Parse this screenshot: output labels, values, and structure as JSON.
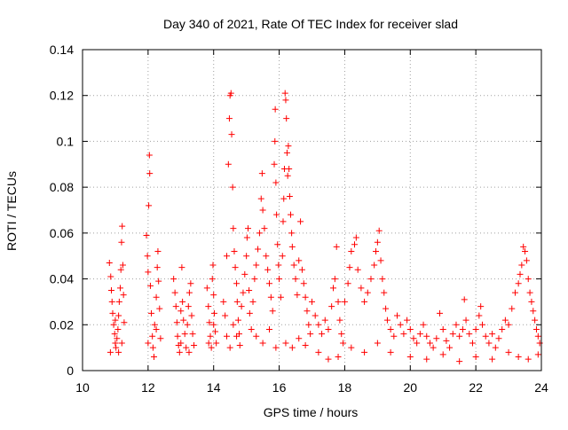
{
  "chart_data": {
    "type": "scatter",
    "title": "Day 340 of 2021, Rate Of TEC Index for receiver slad",
    "xlabel": "GPS time / hours",
    "ylabel": "ROTI / TECUs",
    "xlim": [
      10,
      24
    ],
    "ylim": [
      0,
      0.14
    ],
    "xticks": [
      10,
      12,
      14,
      16,
      18,
      20,
      22,
      24
    ],
    "yticks": [
      0,
      0.02,
      0.04,
      0.06,
      0.08,
      0.1,
      0.12,
      0.14
    ],
    "xtick_labels": [
      "10",
      "12",
      "14",
      "16",
      "18",
      "20",
      "22",
      "24"
    ],
    "ytick_labels": [
      "0",
      "0.02",
      "0.04",
      "0.06",
      "0.08",
      "0.1",
      "0.12",
      "0.14"
    ],
    "grid": true,
    "legend": "none",
    "marker": "+",
    "color": "#ff0000",
    "series": [
      {
        "points": [
          [
            10.82,
            0.047
          ],
          [
            10.86,
            0.041
          ],
          [
            10.88,
            0.035
          ],
          [
            10.9,
            0.03
          ],
          [
            10.92,
            0.025
          ],
          [
            10.95,
            0.02
          ],
          [
            10.98,
            0.016
          ],
          [
            11.0,
            0.012
          ],
          [
            11.02,
            0.01
          ],
          [
            11.05,
            0.014
          ],
          [
            11.08,
            0.018
          ],
          [
            11.1,
            0.024
          ],
          [
            11.12,
            0.03
          ],
          [
            11.15,
            0.036
          ],
          [
            11.17,
            0.044
          ],
          [
            11.19,
            0.056
          ],
          [
            11.21,
            0.063
          ],
          [
            11.23,
            0.046
          ],
          [
            11.25,
            0.033
          ],
          [
            11.27,
            0.021
          ],
          [
            10.85,
            0.008
          ],
          [
            11.0,
            0.022
          ],
          [
            11.1,
            0.008
          ],
          [
            11.2,
            0.012
          ],
          [
            11.95,
            0.059
          ],
          [
            11.98,
            0.05
          ],
          [
            12.0,
            0.043
          ],
          [
            12.02,
            0.072
          ],
          [
            12.04,
            0.094
          ],
          [
            12.05,
            0.086
          ],
          [
            12.07,
            0.037
          ],
          [
            12.1,
            0.025
          ],
          [
            12.13,
            0.015
          ],
          [
            12.15,
            0.01
          ],
          [
            12.18,
            0.006
          ],
          [
            12.2,
            0.02
          ],
          [
            12.25,
            0.032
          ],
          [
            12.28,
            0.045
          ],
          [
            12.3,
            0.052
          ],
          [
            12.32,
            0.039
          ],
          [
            12.35,
            0.027
          ],
          [
            12.38,
            0.014
          ],
          [
            12.0,
            0.012
          ],
          [
            12.25,
            0.018
          ],
          [
            12.78,
            0.04
          ],
          [
            12.82,
            0.034
          ],
          [
            12.85,
            0.028
          ],
          [
            12.88,
            0.021
          ],
          [
            12.9,
            0.015
          ],
          [
            12.93,
            0.011
          ],
          [
            12.96,
            0.008
          ],
          [
            13.0,
            0.012
          ],
          [
            13.03,
            0.045
          ],
          [
            13.05,
            0.03
          ],
          [
            13.08,
            0.022
          ],
          [
            13.12,
            0.016
          ],
          [
            13.16,
            0.01
          ],
          [
            13.2,
            0.02
          ],
          [
            13.23,
            0.028
          ],
          [
            13.26,
            0.034
          ],
          [
            13.3,
            0.038
          ],
          [
            13.33,
            0.024
          ],
          [
            13.36,
            0.016
          ],
          [
            13.4,
            0.011
          ],
          [
            13.0,
            0.026
          ],
          [
            13.25,
            0.008
          ],
          [
            13.8,
            0.036
          ],
          [
            13.84,
            0.028
          ],
          [
            13.87,
            0.021
          ],
          [
            13.9,
            0.015
          ],
          [
            13.93,
            0.01
          ],
          [
            13.96,
            0.04
          ],
          [
            13.98,
            0.046
          ],
          [
            14.0,
            0.033
          ],
          [
            14.02,
            0.025
          ],
          [
            14.05,
            0.017
          ],
          [
            14.08,
            0.012
          ],
          [
            13.85,
            0.012
          ],
          [
            14.0,
            0.02
          ],
          [
            14.3,
            0.03
          ],
          [
            14.35,
            0.024
          ],
          [
            14.4,
            0.05
          ],
          [
            14.45,
            0.09
          ],
          [
            14.48,
            0.11
          ],
          [
            14.5,
            0.12
          ],
          [
            14.53,
            0.121
          ],
          [
            14.55,
            0.103
          ],
          [
            14.58,
            0.08
          ],
          [
            14.6,
            0.062
          ],
          [
            14.63,
            0.052
          ],
          [
            14.66,
            0.045
          ],
          [
            14.7,
            0.038
          ],
          [
            14.72,
            0.03
          ],
          [
            14.75,
            0.022
          ],
          [
            14.78,
            0.016
          ],
          [
            14.8,
            0.011
          ],
          [
            14.4,
            0.015
          ],
          [
            14.5,
            0.01
          ],
          [
            14.6,
            0.02
          ],
          [
            14.7,
            0.015
          ],
          [
            14.85,
            0.028
          ],
          [
            14.9,
            0.034
          ],
          [
            14.95,
            0.042
          ],
          [
            15.0,
            0.05
          ],
          [
            15.02,
            0.058
          ],
          [
            15.05,
            0.062
          ],
          [
            15.08,
            0.035
          ],
          [
            15.1,
            0.025
          ],
          [
            15.15,
            0.018
          ],
          [
            15.2,
            0.03
          ],
          [
            15.25,
            0.04
          ],
          [
            15.3,
            0.046
          ],
          [
            15.35,
            0.053
          ],
          [
            15.4,
            0.06
          ],
          [
            15.45,
            0.075
          ],
          [
            15.48,
            0.086
          ],
          [
            15.5,
            0.07
          ],
          [
            15.55,
            0.062
          ],
          [
            15.6,
            0.05
          ],
          [
            15.65,
            0.044
          ],
          [
            15.7,
            0.038
          ],
          [
            15.75,
            0.032
          ],
          [
            15.8,
            0.026
          ],
          [
            15.85,
            0.09
          ],
          [
            15.87,
            0.1
          ],
          [
            15.88,
            0.114
          ],
          [
            15.9,
            0.082
          ],
          [
            15.92,
            0.068
          ],
          [
            15.95,
            0.055
          ],
          [
            15.98,
            0.046
          ],
          [
            16.0,
            0.04
          ],
          [
            16.05,
            0.032
          ],
          [
            15.3,
            0.015
          ],
          [
            15.5,
            0.012
          ],
          [
            15.7,
            0.018
          ],
          [
            15.9,
            0.01
          ],
          [
            16.1,
            0.05
          ],
          [
            16.12,
            0.065
          ],
          [
            16.14,
            0.075
          ],
          [
            16.16,
            0.088
          ],
          [
            16.18,
            0.121
          ],
          [
            16.2,
            0.118
          ],
          [
            16.22,
            0.11
          ],
          [
            16.24,
            0.095
          ],
          [
            16.26,
            0.085
          ],
          [
            16.28,
            0.098
          ],
          [
            16.3,
            0.088
          ],
          [
            16.32,
            0.076
          ],
          [
            16.35,
            0.068
          ],
          [
            16.38,
            0.06
          ],
          [
            16.4,
            0.054
          ],
          [
            16.45,
            0.046
          ],
          [
            16.5,
            0.04
          ],
          [
            16.55,
            0.033
          ],
          [
            16.6,
            0.048
          ],
          [
            16.65,
            0.065
          ],
          [
            16.7,
            0.044
          ],
          [
            16.75,
            0.038
          ],
          [
            16.8,
            0.032
          ],
          [
            16.85,
            0.026
          ],
          [
            16.9,
            0.02
          ],
          [
            16.95,
            0.016
          ],
          [
            16.2,
            0.012
          ],
          [
            16.4,
            0.01
          ],
          [
            16.6,
            0.014
          ],
          [
            16.8,
            0.011
          ],
          [
            17.0,
            0.03
          ],
          [
            17.1,
            0.024
          ],
          [
            17.2,
            0.02
          ],
          [
            17.3,
            0.016
          ],
          [
            17.4,
            0.022
          ],
          [
            17.5,
            0.018
          ],
          [
            17.6,
            0.028
          ],
          [
            17.65,
            0.036
          ],
          [
            17.7,
            0.04
          ],
          [
            17.75,
            0.054
          ],
          [
            17.8,
            0.03
          ],
          [
            17.85,
            0.022
          ],
          [
            17.9,
            0.016
          ],
          [
            17.95,
            0.012
          ],
          [
            17.2,
            0.008
          ],
          [
            17.5,
            0.005
          ],
          [
            17.8,
            0.006
          ],
          [
            18.0,
            0.03
          ],
          [
            18.1,
            0.038
          ],
          [
            18.15,
            0.045
          ],
          [
            18.2,
            0.052
          ],
          [
            18.3,
            0.055
          ],
          [
            18.35,
            0.058
          ],
          [
            18.4,
            0.044
          ],
          [
            18.5,
            0.036
          ],
          [
            18.6,
            0.03
          ],
          [
            18.7,
            0.034
          ],
          [
            18.8,
            0.04
          ],
          [
            18.9,
            0.046
          ],
          [
            18.95,
            0.052
          ],
          [
            19.0,
            0.056
          ],
          [
            19.05,
            0.061
          ],
          [
            19.1,
            0.048
          ],
          [
            19.15,
            0.04
          ],
          [
            19.2,
            0.034
          ],
          [
            19.25,
            0.027
          ],
          [
            19.3,
            0.022
          ],
          [
            19.4,
            0.018
          ],
          [
            19.5,
            0.015
          ],
          [
            18.2,
            0.01
          ],
          [
            18.6,
            0.008
          ],
          [
            19.0,
            0.012
          ],
          [
            19.4,
            0.008
          ],
          [
            19.6,
            0.024
          ],
          [
            19.7,
            0.02
          ],
          [
            19.8,
            0.016
          ],
          [
            19.9,
            0.022
          ],
          [
            20.0,
            0.018
          ],
          [
            20.1,
            0.014
          ],
          [
            20.2,
            0.012
          ],
          [
            20.3,
            0.016
          ],
          [
            20.4,
            0.02
          ],
          [
            20.5,
            0.015
          ],
          [
            20.6,
            0.012
          ],
          [
            20.7,
            0.01
          ],
          [
            20.8,
            0.014
          ],
          [
            20.9,
            0.025
          ],
          [
            21.0,
            0.018
          ],
          [
            21.1,
            0.013
          ],
          [
            21.2,
            0.01
          ],
          [
            21.3,
            0.016
          ],
          [
            21.4,
            0.02
          ],
          [
            21.5,
            0.015
          ],
          [
            21.6,
            0.018
          ],
          [
            21.65,
            0.031
          ],
          [
            21.7,
            0.022
          ],
          [
            21.8,
            0.016
          ],
          [
            21.9,
            0.012
          ],
          [
            22.0,
            0.018
          ],
          [
            22.1,
            0.024
          ],
          [
            22.15,
            0.028
          ],
          [
            22.2,
            0.02
          ],
          [
            22.3,
            0.015
          ],
          [
            22.4,
            0.012
          ],
          [
            22.5,
            0.016
          ],
          [
            22.6,
            0.01
          ],
          [
            22.7,
            0.014
          ],
          [
            22.8,
            0.018
          ],
          [
            22.9,
            0.022
          ],
          [
            20.0,
            0.006
          ],
          [
            20.5,
            0.005
          ],
          [
            21.0,
            0.007
          ],
          [
            21.5,
            0.004
          ],
          [
            22.0,
            0.006
          ],
          [
            22.5,
            0.005
          ],
          [
            23.0,
            0.02
          ],
          [
            23.1,
            0.027
          ],
          [
            23.2,
            0.034
          ],
          [
            23.3,
            0.038
          ],
          [
            23.35,
            0.042
          ],
          [
            23.4,
            0.046
          ],
          [
            23.45,
            0.054
          ],
          [
            23.5,
            0.052
          ],
          [
            23.55,
            0.048
          ],
          [
            23.6,
            0.04
          ],
          [
            23.65,
            0.034
          ],
          [
            23.7,
            0.03
          ],
          [
            23.75,
            0.026
          ],
          [
            23.8,
            0.022
          ],
          [
            23.85,
            0.018
          ],
          [
            23.9,
            0.015
          ],
          [
            23.95,
            0.012
          ],
          [
            23.0,
            0.008
          ],
          [
            23.3,
            0.006
          ],
          [
            23.6,
            0.005
          ],
          [
            23.9,
            0.007
          ]
        ]
      }
    ]
  }
}
